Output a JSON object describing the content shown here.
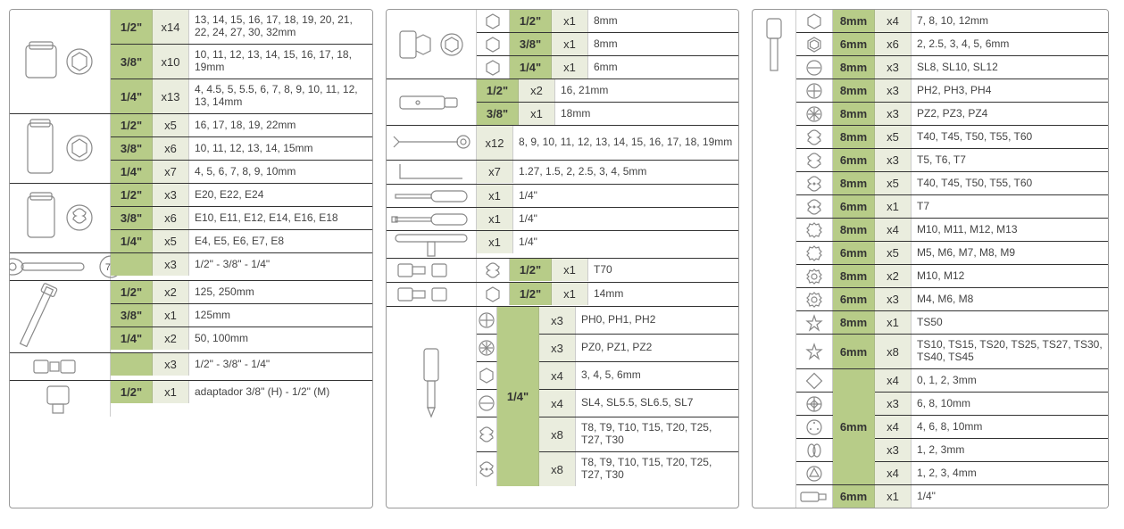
{
  "colors": {
    "size_bg": "#b7cc88",
    "qty_bg": "#eaedde",
    "border": "#333333",
    "light_border": "#cccccc",
    "text": "#333333"
  },
  "column1": [
    {
      "image": "socket-short",
      "rows": [
        {
          "size": "1/2\"",
          "qty": "x14",
          "desc": "13, 14, 15, 16, 17, 18, 19, 20, 21, 22, 24, 27, 30, 32mm",
          "h": 2
        },
        {
          "size": "3/8\"",
          "qty": "x10",
          "desc": "10, 11, 12, 13, 14, 15, 16, 17, 18, 19mm",
          "h": 2
        },
        {
          "size": "1/4\"",
          "qty": "x13",
          "desc": "4, 4.5, 5, 5.5, 6, 7, 8, 9, 10, 11, 12, 13, 14mm",
          "h": 2
        }
      ]
    },
    {
      "image": "socket-long",
      "rows": [
        {
          "size": "1/2\"",
          "qty": "x5",
          "desc": "16, 17, 18, 19, 22mm"
        },
        {
          "size": "3/8\"",
          "qty": "x6",
          "desc": "10, 11, 12, 13, 14, 15mm"
        },
        {
          "size": "1/4\"",
          "qty": "x7",
          "desc": "4, 5, 6, 7, 8, 9, 10mm"
        }
      ]
    },
    {
      "image": "socket-torx",
      "rows": [
        {
          "size": "1/2\"",
          "qty": "x3",
          "desc": "E20, E22, E24"
        },
        {
          "size": "3/8\"",
          "qty": "x6",
          "desc": "E10, E11, E12, E14, E16, E18"
        },
        {
          "size": "1/4\"",
          "qty": "x5",
          "desc": "E4, E5, E6, E7, E8"
        }
      ]
    },
    {
      "image": "ratchet",
      "rows": [
        {
          "size": "",
          "qty": "x3",
          "desc": "1/2\" - 3/8\" - 1/4\"",
          "icon72": true
        }
      ]
    },
    {
      "image": "extension",
      "rows": [
        {
          "size": "1/2\"",
          "qty": "x2",
          "desc": "125, 250mm"
        },
        {
          "size": "3/8\"",
          "qty": "x1",
          "desc": "125mm"
        },
        {
          "size": "1/4\"",
          "qty": "x2",
          "desc": "50, 100mm"
        }
      ]
    },
    {
      "image": "ujoint",
      "rows": [
        {
          "size": "",
          "qty": "x3",
          "desc": "1/2\" - 3/8\" - 1/4\""
        }
      ]
    },
    {
      "image": "adapter",
      "rows": [
        {
          "size": "1/2\"",
          "qty": "x1",
          "desc": "adaptador 3/8\" (H) - 1/2\" (M)"
        }
      ]
    }
  ],
  "column2": [
    {
      "image": "joint-socket",
      "rows": [
        {
          "icon": "hex-outline",
          "size": "1/2\"",
          "qty": "x1",
          "desc": "8mm"
        },
        {
          "icon": "hex-outline",
          "size": "3/8\"",
          "qty": "x1",
          "desc": "8mm"
        },
        {
          "icon": "hex-outline",
          "size": "1/4\"",
          "qty": "x1",
          "desc": "6mm"
        }
      ]
    },
    {
      "image": "spark-socket",
      "rows": [
        {
          "size": "1/2\"",
          "qty": "x2",
          "desc": "16, 21mm"
        },
        {
          "size": "3/8\"",
          "qty": "x1",
          "desc": "18mm"
        }
      ]
    },
    {
      "image": "wrench",
      "rows": [
        {
          "size": "",
          "qty": "x12",
          "desc": "8, 9, 10, 11, 12, 13, 14, 15, 16, 17, 18, 19mm",
          "h": 2,
          "nosize": true
        }
      ]
    },
    {
      "image": "hexkey",
      "rows": [
        {
          "size": "",
          "qty": "x7",
          "desc": "1.27, 1.5, 2, 2.5, 3, 4, 5mm",
          "nosize": true
        }
      ]
    },
    {
      "image": "screwdriver1",
      "rows": [
        {
          "size": "",
          "qty": "x1",
          "desc": "1/4\"",
          "nosize": true
        }
      ]
    },
    {
      "image": "screwdriver2",
      "rows": [
        {
          "size": "",
          "qty": "x1",
          "desc": "1/4\"",
          "nosize": true
        }
      ]
    },
    {
      "image": "t-handle",
      "rows": [
        {
          "size": "",
          "qty": "x1",
          "desc": "1/4\"",
          "nosize": true
        }
      ]
    },
    {
      "image": "bit-socket-1",
      "rows": [
        {
          "icon": "torx-outline",
          "size": "1/2\"",
          "qty": "x1",
          "desc": "T70"
        }
      ]
    },
    {
      "image": "bit-socket-2",
      "rows": [
        {
          "icon": "hex-outline",
          "size": "1/2\"",
          "qty": "x1",
          "desc": "14mm"
        }
      ]
    },
    {
      "image": "bit-holder",
      "size_span": "1/4\"",
      "rows": [
        {
          "icon": "phillips",
          "qty": "x3",
          "desc": "PH0, PH1, PH2"
        },
        {
          "icon": "pozi",
          "qty": "x3",
          "desc": "PZ0, PZ1, PZ2"
        },
        {
          "icon": "hex-outline",
          "qty": "x4",
          "desc": "3, 4, 5, 6mm"
        },
        {
          "icon": "slot",
          "qty": "x4",
          "desc": "SL4, SL5.5, SL6.5, SL7"
        },
        {
          "icon": "torx-outline",
          "qty": "x8",
          "desc": "T8, T9, T10, T15, T20, T25, T27, T30",
          "h": 2
        },
        {
          "icon": "torx-security",
          "qty": "x8",
          "desc": "T8, T9, T10, T15, T20, T25, T27, T30",
          "h": 2
        }
      ]
    }
  ],
  "column3": {
    "image": "bit-long",
    "rows": [
      {
        "icon": "hex-outline",
        "size": "8mm",
        "qty": "x4",
        "desc": "7, 8, 10, 12mm"
      },
      {
        "icon": "hex-double",
        "size": "6mm",
        "qty": "x6",
        "desc": "2, 2.5, 3, 4, 5, 6mm"
      },
      {
        "icon": "slot",
        "size": "8mm",
        "qty": "x3",
        "desc": "SL8, SL10, SL12"
      },
      {
        "icon": "phillips",
        "size": "8mm",
        "qty": "x3",
        "desc": "PH2, PH3, PH4"
      },
      {
        "icon": "pozi",
        "size": "8mm",
        "qty": "x3",
        "desc": "PZ2, PZ3, PZ4"
      },
      {
        "icon": "torx-outline",
        "size": "8mm",
        "qty": "x5",
        "desc": "T40, T45, T50, T55, T60"
      },
      {
        "icon": "torx-outline",
        "size": "6mm",
        "qty": "x3",
        "desc": "T5, T6, T7"
      },
      {
        "icon": "torx-security",
        "size": "8mm",
        "qty": "x5",
        "desc": "T40, T45, T50, T55, T60"
      },
      {
        "icon": "torx-security",
        "size": "6mm",
        "qty": "x1",
        "desc": "T7"
      },
      {
        "icon": "spline",
        "size": "8mm",
        "qty": "x4",
        "desc": "M10, M11, M12, M13"
      },
      {
        "icon": "spline",
        "size": "6mm",
        "qty": "x5",
        "desc": "M5, M6, M7, M8, M9"
      },
      {
        "icon": "spline2",
        "size": "8mm",
        "qty": "x2",
        "desc": "M10, M12"
      },
      {
        "icon": "spline2",
        "size": "6mm",
        "qty": "x3",
        "desc": "M4, M6, M8"
      },
      {
        "icon": "star5",
        "size": "8mm",
        "qty": "x1",
        "desc": "TS50"
      },
      {
        "icon": "star5",
        "size": "6mm",
        "qty": "x8",
        "desc": "TS10, TS15, TS20, TS25, TS27, TS30, TS40, TS45",
        "h": 2
      },
      {
        "icon": "square",
        "size": "",
        "qty": "x4",
        "desc": "0, 1, 2, 3mm",
        "sizespan_start": true
      },
      {
        "icon": "phillips-sq",
        "size": "",
        "qty": "x3",
        "desc": "6, 8, 10mm"
      },
      {
        "icon": "circle-dots",
        "size": "6mm",
        "qty": "x4",
        "desc": "4, 6, 8, 10mm",
        "sizespan_mid": true
      },
      {
        "icon": "double-oval",
        "size": "",
        "qty": "x3",
        "desc": "1, 2, 3mm"
      },
      {
        "icon": "tri",
        "size": "",
        "qty": "x4",
        "desc": "1, 2, 3, 4mm"
      },
      {
        "icon": "adapter-small",
        "size": "6mm",
        "qty": "x1",
        "desc": "1/4\""
      }
    ],
    "sizespan_group": {
      "start": 15,
      "end": 19,
      "label": "6mm"
    }
  }
}
